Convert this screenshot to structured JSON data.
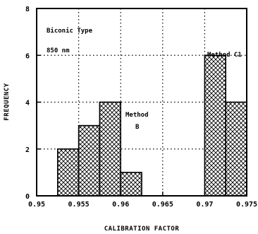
{
  "chart_data": {
    "type": "bar",
    "subtype": "histogram",
    "xlabel": "CALIBRATION FACTOR",
    "ylabel": "FREQUENCY",
    "xlim": [
      0.95,
      0.975
    ],
    "ylim": [
      0,
      8
    ],
    "xticks": [
      0.95,
      0.955,
      0.96,
      0.965,
      0.97,
      0.975
    ],
    "xtick_labels": [
      "0.95",
      "0.955",
      "0.96",
      "0.965",
      "0.97",
      "0.975"
    ],
    "yticks": [
      0,
      2,
      4,
      6,
      8
    ],
    "ytick_labels": [
      "0",
      "2",
      "4",
      "6",
      "8"
    ],
    "grid": true,
    "fill_pattern": "crosshatch",
    "annotations": {
      "type_label": "Biconic Type",
      "wavelength": "850 nm",
      "method_b": [
        "Method",
        "B"
      ],
      "method_c1": "Method C1"
    },
    "series": [
      {
        "bins": [
          {
            "x0": 0.9525,
            "x1": 0.955,
            "count": 2
          },
          {
            "x0": 0.955,
            "x1": 0.9575,
            "count": 3
          },
          {
            "x0": 0.9575,
            "x1": 0.96,
            "count": 4
          },
          {
            "x0": 0.96,
            "x1": 0.9625,
            "count": 1
          }
        ]
      },
      {
        "bins": [
          {
            "x0": 0.97,
            "x1": 0.9725,
            "count": 6
          },
          {
            "x0": 0.9725,
            "x1": 0.975,
            "count": 4
          }
        ]
      }
    ]
  }
}
